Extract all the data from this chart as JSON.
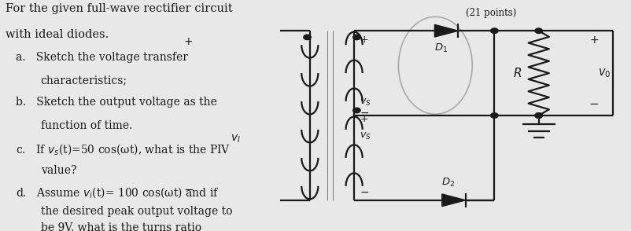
{
  "bg_color": "#e8e8e8",
  "text_color": "#1a1a1a",
  "font_size_title": 10.5,
  "font_size_items": 10.0,
  "circuit_label_D1": "$D_1$",
  "circuit_label_D2": "$D_2$",
  "circuit_label_R": "$R$",
  "circuit_label_vS": "$v_S$",
  "circuit_label_vO": "$v_0$",
  "circuit_label_vI": "$v_I$",
  "line_color": "#1a1a1a",
  "header_text": "(21 points)"
}
